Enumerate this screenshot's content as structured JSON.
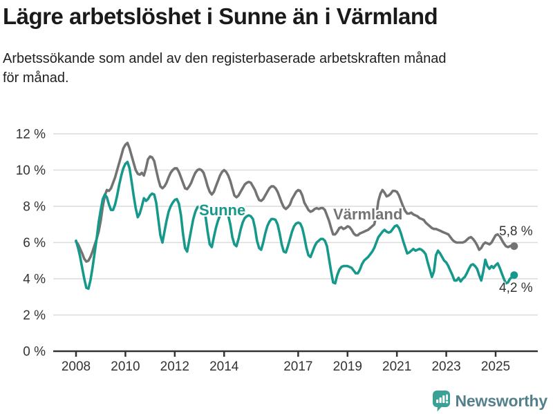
{
  "header": {
    "title": "Lägre arbetslöshet i Sunne än i Värmland",
    "subtitle_line1": "Arbetssökande som andel av den registerbaserade arbetskraften månad",
    "subtitle_line2": "för månad."
  },
  "chart_data": {
    "type": "line",
    "title": "Lägre arbetslöshet i Sunne än i Värmland",
    "subtitle": "Arbetssökande som andel av den registerbaserade arbetskraften månad för månad.",
    "unit": "%",
    "frequency": "monthly",
    "x_start": "2008-01",
    "x_end": "2025-10",
    "ylim": [
      0,
      12
    ],
    "grid": "horizontal",
    "legend_position": "inline-labels",
    "y_ticks": [
      {
        "value": 0,
        "label": "0 %"
      },
      {
        "value": 2,
        "label": "2 %"
      },
      {
        "value": 4,
        "label": "4 %"
      },
      {
        "value": 6,
        "label": "6 %"
      },
      {
        "value": 8,
        "label": "8 %"
      },
      {
        "value": 10,
        "label": "10 %"
      },
      {
        "value": 12,
        "label": "12 %"
      }
    ],
    "x_ticks": [
      {
        "value": 2008,
        "label": "2008"
      },
      {
        "value": 2010,
        "label": "2010"
      },
      {
        "value": 2012,
        "label": "2012"
      },
      {
        "value": 2014,
        "label": "2014"
      },
      {
        "value": 2017,
        "label": "2017"
      },
      {
        "value": 2019,
        "label": "2019"
      },
      {
        "value": 2021,
        "label": "2021"
      },
      {
        "value": 2023,
        "label": "2023"
      },
      {
        "value": 2025,
        "label": "2025"
      }
    ],
    "series": [
      {
        "name": "Sunne",
        "inline_label": "Sunne",
        "color": "#16988b",
        "end_value": 4.2,
        "end_label": "4,2 %",
        "values": [
          6.1,
          5.7,
          5.2,
          4.6,
          4.0,
          3.5,
          3.45,
          3.9,
          4.6,
          5.4,
          6.2,
          7.1,
          7.8,
          8.4,
          8.65,
          8.5,
          8.1,
          7.8,
          7.8,
          8.1,
          8.6,
          9.2,
          9.7,
          10.1,
          10.35,
          10.45,
          10.1,
          9.4,
          8.6,
          7.9,
          7.4,
          7.6,
          8.0,
          8.45,
          8.3,
          8.4,
          8.6,
          8.7,
          8.65,
          8.2,
          7.3,
          6.4,
          6.0,
          6.6,
          7.2,
          7.7,
          8.0,
          8.2,
          8.35,
          8.4,
          8.15,
          7.5,
          6.5,
          5.7,
          5.5,
          6.1,
          6.7,
          7.3,
          7.7,
          7.95,
          8.0,
          8.0,
          7.9,
          7.4,
          6.6,
          5.9,
          5.75,
          6.3,
          6.8,
          7.2,
          7.5,
          7.7,
          7.75,
          7.7,
          7.5,
          7.0,
          6.3,
          5.9,
          5.8,
          6.2,
          6.7,
          7.1,
          7.35,
          7.45,
          7.5,
          7.45,
          7.3,
          6.8,
          6.1,
          5.7,
          5.6,
          6.0,
          6.5,
          6.9,
          7.15,
          7.3,
          7.3,
          7.25,
          7.0,
          6.5,
          5.9,
          5.5,
          5.45,
          5.8,
          6.2,
          6.6,
          6.9,
          7.05,
          7.1,
          7.05,
          6.8,
          6.3,
          5.7,
          5.3,
          5.2,
          5.5,
          5.8,
          6.0,
          6.1,
          6.2,
          6.2,
          6.1,
          5.8,
          5.1,
          4.4,
          3.8,
          3.75,
          4.2,
          4.5,
          4.65,
          4.7,
          4.7,
          4.7,
          4.65,
          4.6,
          4.45,
          4.3,
          4.3,
          4.5,
          4.8,
          5.0,
          5.1,
          5.2,
          5.35,
          5.5,
          5.7,
          6.0,
          6.3,
          6.45,
          6.6,
          6.7,
          6.6,
          6.55,
          6.6,
          6.75,
          6.9,
          6.95,
          6.8,
          6.5,
          6.1,
          5.75,
          5.4,
          5.45,
          5.55,
          5.65,
          5.55,
          5.6,
          5.65,
          5.6,
          5.5,
          5.35,
          4.9,
          4.5,
          4.1,
          4.4,
          5.3,
          5.55,
          5.4,
          5.2,
          5.0,
          4.9,
          4.7,
          4.45,
          4.2,
          3.9,
          3.9,
          4.05,
          3.85,
          4.0,
          4.1,
          4.3,
          4.55,
          4.75,
          4.8,
          4.7,
          4.55,
          4.2,
          3.9,
          4.4,
          5.05,
          4.7,
          4.55,
          4.7,
          4.6,
          4.75,
          4.85,
          4.6,
          4.3,
          4.0,
          3.75,
          3.8,
          4.0,
          4.1,
          4.2
        ]
      },
      {
        "name": "Värmland",
        "inline_label": "Värmland",
        "color": "#737373",
        "end_value": 5.8,
        "end_label": "5,8 %",
        "values": [
          6.05,
          5.9,
          5.65,
          5.4,
          5.1,
          4.95,
          5.0,
          5.2,
          5.5,
          5.85,
          6.2,
          6.6,
          7.2,
          8.0,
          8.6,
          8.9,
          8.85,
          9.0,
          9.3,
          9.6,
          10.0,
          10.4,
          10.8,
          11.2,
          11.4,
          11.5,
          11.2,
          10.8,
          10.4,
          10.0,
          9.8,
          9.75,
          9.85,
          9.7,
          10.1,
          10.6,
          10.75,
          10.7,
          10.5,
          10.0,
          9.5,
          9.1,
          9.0,
          9.1,
          9.3,
          9.6,
          9.85,
          10.0,
          10.1,
          10.1,
          9.9,
          9.6,
          9.3,
          9.0,
          8.95,
          9.1,
          9.3,
          9.6,
          9.85,
          10.0,
          10.05,
          10.0,
          9.85,
          9.5,
          9.1,
          8.8,
          8.65,
          8.8,
          9.1,
          9.4,
          9.7,
          9.9,
          10.0,
          9.9,
          9.7,
          9.4,
          9.0,
          8.6,
          8.5,
          8.6,
          8.8,
          9.0,
          9.2,
          9.3,
          9.35,
          9.3,
          9.1,
          8.9,
          8.6,
          8.35,
          8.3,
          8.4,
          8.6,
          8.8,
          9.0,
          9.1,
          9.1,
          9.0,
          8.8,
          8.5,
          8.2,
          7.95,
          7.85,
          7.95,
          8.1,
          8.4,
          8.6,
          8.8,
          8.9,
          8.85,
          8.6,
          8.2,
          8.0,
          7.8,
          7.7,
          7.75,
          7.85,
          7.9,
          7.85,
          7.9,
          7.9,
          7.8,
          7.5,
          7.2,
          6.8,
          6.45,
          6.45,
          6.6,
          6.8,
          6.85,
          6.75,
          6.8,
          6.9,
          6.85,
          6.7,
          6.5,
          6.4,
          6.4,
          6.5,
          6.55,
          6.6,
          6.65,
          6.7,
          6.8,
          6.9,
          7.0,
          7.5,
          8.3,
          8.7,
          8.9,
          8.75,
          8.55,
          8.6,
          8.7,
          8.85,
          8.85,
          8.8,
          8.6,
          8.3,
          8.0,
          7.75,
          7.6,
          7.6,
          7.65,
          7.55,
          7.5,
          7.45,
          7.35,
          7.3,
          7.25,
          7.1,
          7.0,
          6.9,
          6.8,
          6.75,
          6.75,
          6.7,
          6.65,
          6.6,
          6.55,
          6.5,
          6.45,
          6.3,
          6.15,
          6.05,
          6.0,
          6.0,
          6.0,
          6.0,
          6.05,
          6.15,
          6.25,
          6.3,
          6.2,
          6.05,
          5.85,
          5.6,
          5.7,
          5.9,
          6.0,
          5.95,
          5.9,
          6.0,
          6.2,
          6.4,
          6.45,
          6.35,
          6.15,
          5.95,
          5.8,
          5.75,
          5.8,
          5.85,
          5.8
        ]
      }
    ],
    "colors": {
      "sunne": "#16988b",
      "varmland": "#737373",
      "gridline": "#dcdcdc",
      "axis": "#333333"
    }
  },
  "footer": {
    "brand": "Newsworthy",
    "logo_icon": "bar-chart-speech-bubble",
    "brand_icon_color": "#3ba197",
    "brand_text_color": "#54808b"
  }
}
